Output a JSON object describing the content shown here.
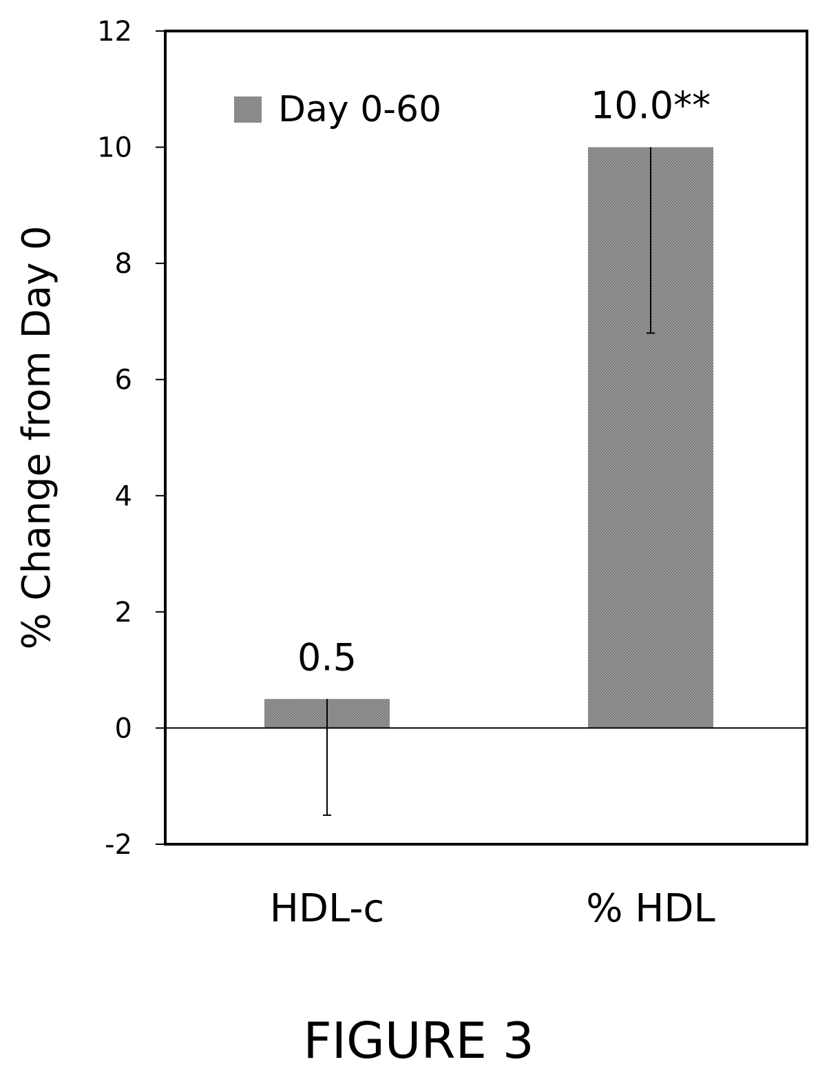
{
  "chart_data": {
    "type": "bar",
    "categories": [
      "HDL-c",
      "% HDL"
    ],
    "series": [
      {
        "name": "Day 0-60",
        "values": [
          0.5,
          10.0
        ],
        "error_low": [
          -1.5,
          6.8
        ],
        "error_high": [
          0.5,
          10.0
        ],
        "labels": [
          "0.5",
          "10.0**"
        ]
      }
    ],
    "ylabel": "% Change from Day 0",
    "ylim": [
      -2,
      12
    ],
    "yticks": [
      12,
      10,
      8,
      6,
      4,
      2,
      0,
      -2
    ],
    "ytick_labels": [
      "12",
      "10",
      "8",
      "6",
      "4",
      "2",
      "0",
      "-2"
    ],
    "grid": false,
    "legend_position": "top-left",
    "bar_color": "#8c8c8c"
  },
  "figure_caption": "FIGURE 3"
}
